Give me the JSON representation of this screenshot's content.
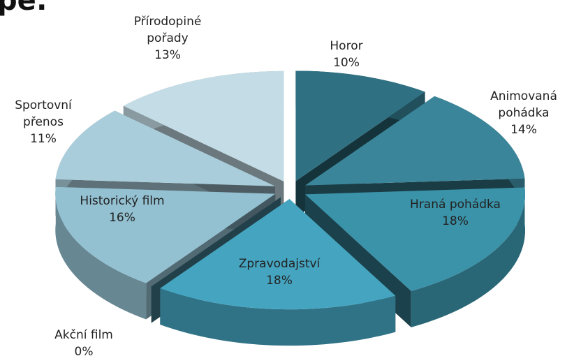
{
  "chart_data": {
    "type": "pie3d",
    "title": "pe:",
    "categories": [
      "Horor",
      "Animovaná pohádka",
      "Hraná pohádka",
      "Zpravodajství",
      "Akční film",
      "Historický film",
      "Sportovní přenos",
      "Přírodopiné pořady"
    ],
    "values": [
      10,
      14,
      18,
      18,
      0,
      16,
      11,
      13
    ],
    "value_labels": [
      "10%",
      "14%",
      "18%",
      "18%",
      "0%",
      "16%",
      "11%",
      "13%"
    ],
    "colors": [
      "#2f7183",
      "#3a8599",
      "#3b93a9",
      "#45a5c1",
      "#4b8ea3",
      "#93c1d2",
      "#aacddb",
      "#c3dce5"
    ]
  }
}
